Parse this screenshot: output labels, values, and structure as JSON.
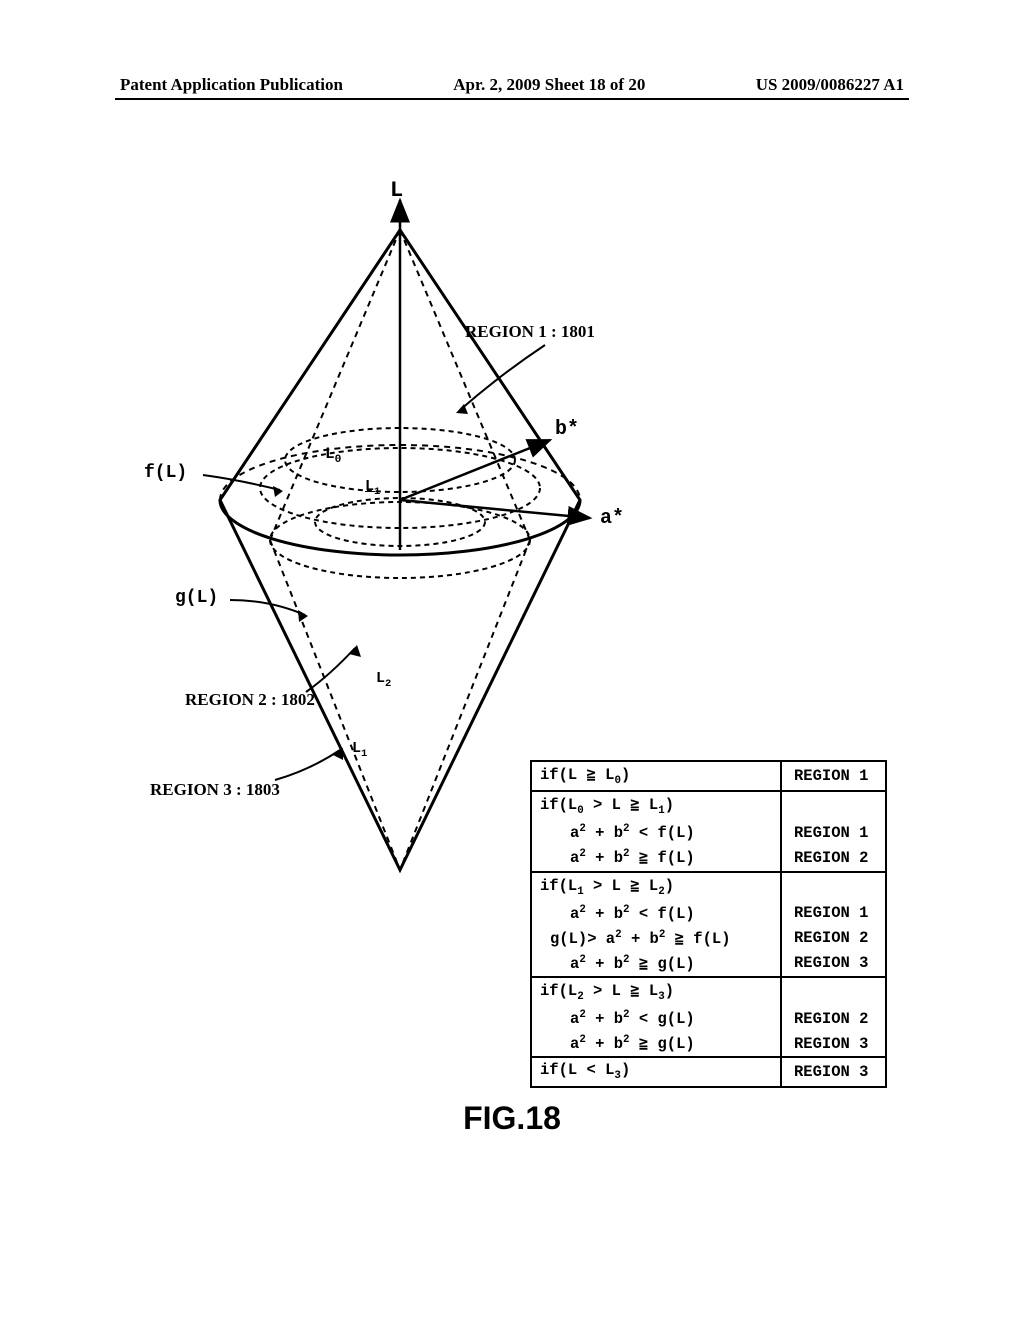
{
  "header": {
    "left": "Patent Application Publication",
    "center": "Apr. 2, 2009  Sheet 18 of 20",
    "right": "US 2009/0086227 A1"
  },
  "diagram": {
    "background": "#ffffff",
    "stroke": "#000000",
    "stroke_width": 2.5,
    "dash_pattern": "6 5",
    "axis_L": "L",
    "axis_a": "a*",
    "axis_b": "b*",
    "L0": "L₀",
    "L1": "L₁",
    "L1b": "L₁",
    "L2": "L₂",
    "fL": "f(L)",
    "gL": "g(L)",
    "region1": "REGION 1 : 1801",
    "region2": "REGION 2 : 1802",
    "region3": "REGION 3 : 1803"
  },
  "table": {
    "r1": {
      "cond": "if(L ≧ L₀)",
      "reg": "REGION 1"
    },
    "r2": {
      "cond": "if(L₀ > L ≧ L₁)",
      "reg": ""
    },
    "r2a": {
      "cond": "a² + b²  < f(L)",
      "reg": "REGION 1"
    },
    "r2b": {
      "cond": "a² + b² ≧ f(L)",
      "reg": "REGION 2"
    },
    "r3": {
      "cond": "if(L₁ > L ≧ L₂)",
      "reg": ""
    },
    "r3a": {
      "cond": "a² + b²  < f(L)",
      "reg": "REGION 1"
    },
    "r3b": {
      "cond": "g(L)> a² + b² ≧ f(L)",
      "reg": "REGION 2"
    },
    "r3c": {
      "cond": "a² + b² ≧ g(L)",
      "reg": "REGION 3"
    },
    "r4": {
      "cond": "if(L₂ > L ≧ L₃)",
      "reg": ""
    },
    "r4a": {
      "cond": "a² + b²  < g(L)",
      "reg": "REGION 2"
    },
    "r4b": {
      "cond": "a² + b² ≧ g(L)",
      "reg": "REGION 3"
    },
    "r5": {
      "cond": "if(L < L₃)",
      "reg": "REGION 3"
    }
  },
  "caption": "FIG.18"
}
